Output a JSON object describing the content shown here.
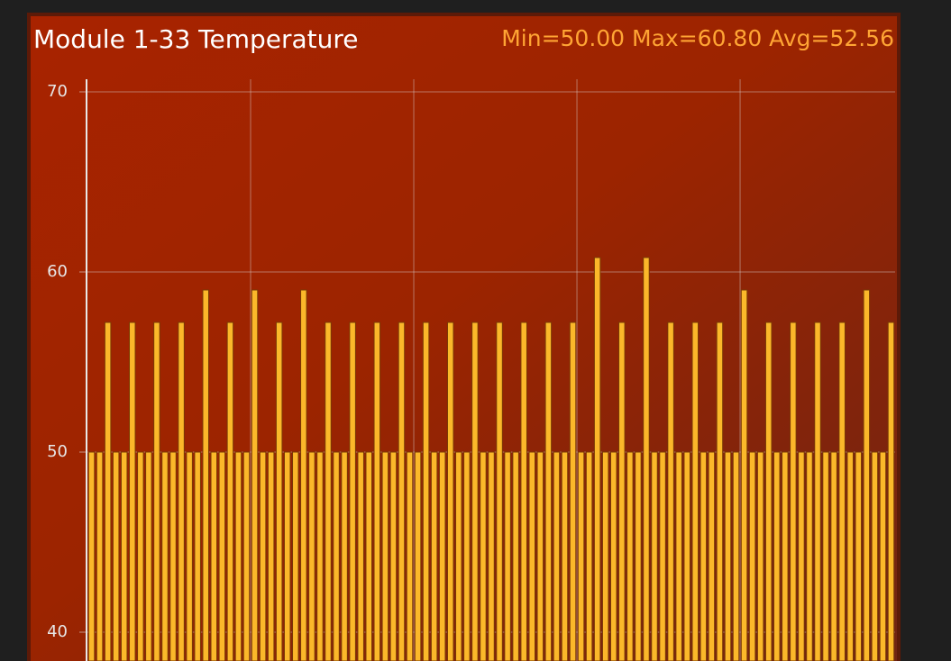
{
  "chart_data": {
    "type": "bar",
    "title": "Module 1-33 Temperature",
    "subtitle": "Min=50.00 Max=60.80 Avg=52.56",
    "categories": [
      null,
      null,
      null,
      null,
      null,
      null,
      null,
      null,
      null,
      null,
      null,
      null,
      null,
      null,
      null,
      null,
      null,
      null,
      null,
      null,
      null,
      null,
      null,
      null,
      null,
      null,
      null,
      null,
      null,
      null,
      null,
      null,
      null,
      null,
      null,
      null,
      null,
      null,
      null,
      null,
      null,
      null,
      null,
      null,
      null,
      null,
      null,
      null,
      null,
      null,
      null,
      null,
      null,
      null,
      null,
      null,
      null,
      null,
      null,
      null,
      null,
      null,
      null,
      null,
      null,
      null,
      null,
      null,
      null,
      null,
      null,
      null,
      null,
      null,
      null,
      null,
      null,
      null,
      null,
      null,
      null,
      null,
      null,
      null,
      null,
      null,
      null,
      null,
      null,
      null,
      null,
      null,
      null,
      null,
      null,
      null,
      null,
      null,
      null
    ],
    "values": [
      50,
      50,
      57.2,
      50,
      50,
      57.2,
      50,
      50,
      57.2,
      50,
      50,
      57.2,
      50,
      50,
      59,
      50,
      50,
      57.2,
      50,
      50,
      59,
      50,
      50,
      57.2,
      50,
      50,
      59,
      50,
      50,
      57.2,
      50,
      50,
      57.2,
      50,
      50,
      57.2,
      50,
      50,
      57.2,
      50,
      50,
      57.2,
      50,
      50,
      57.2,
      50,
      50,
      57.2,
      50,
      50,
      57.2,
      50,
      50,
      57.2,
      50,
      50,
      57.2,
      50,
      50,
      57.2,
      50,
      50,
      60.8,
      50,
      50,
      57.2,
      50,
      50,
      60.8,
      50,
      50,
      57.2,
      50,
      50,
      57.2,
      50,
      50,
      57.2,
      50,
      50,
      59,
      50,
      50,
      57.2,
      50,
      50,
      57.2,
      50,
      50,
      57.2,
      50,
      50,
      57.2,
      50,
      50,
      59,
      50,
      50,
      57.2
    ],
    "color": "#fbb82a",
    "ylim": [
      38.4,
      70.7
    ],
    "yticks": [
      40,
      50,
      60,
      70
    ],
    "grid": true
  }
}
